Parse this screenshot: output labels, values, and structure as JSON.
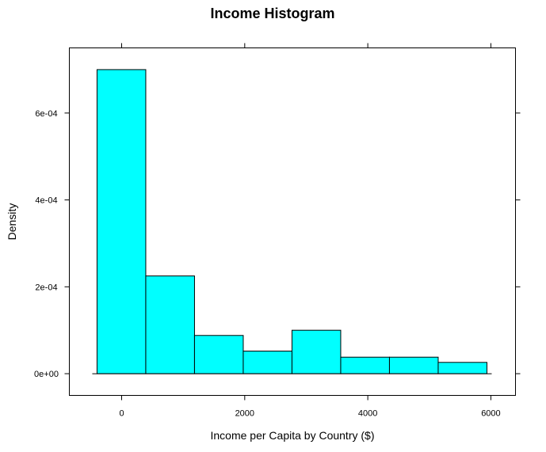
{
  "chart_data": {
    "type": "bar",
    "title": "Income Histogram",
    "xlabel": "Income per Capita by Country ($)",
    "ylabel": "Density",
    "bin_edges": [
      -400,
      392,
      1184,
      1976,
      2768,
      3560,
      4352,
      5144,
      5936
    ],
    "values": [
      0.0007,
      0.000225,
      8.8e-05,
      5.2e-05,
      0.0001,
      3.8e-05,
      3.8e-05,
      2.6e-05
    ],
    "xlim": [
      -850,
      6400
    ],
    "ylim": [
      -5e-05,
      0.00075
    ],
    "x_ticks": [
      0,
      2000,
      4000,
      6000
    ],
    "x_tick_labels": [
      "0",
      "2000",
      "4000",
      "6000"
    ],
    "y_ticks": [
      0,
      0.0002,
      0.0004,
      0.0006
    ],
    "y_tick_labels": [
      "0e+00",
      "2e-04",
      "4e-04",
      "6e-04"
    ],
    "bar_fill": "#00FFFF",
    "bar_stroke": "#000000",
    "grid": false,
    "legend": "none"
  }
}
